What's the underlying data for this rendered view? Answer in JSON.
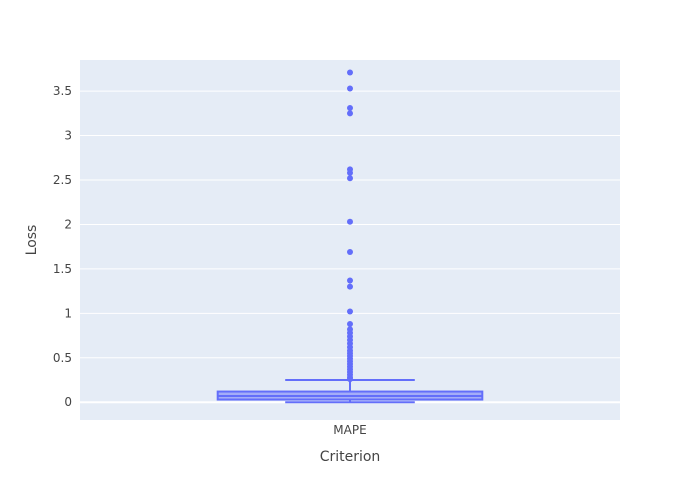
{
  "chart_data": {
    "type": "box",
    "xlabel": "Criterion",
    "ylabel": "Loss",
    "ylim": [
      -0.2,
      3.85
    ],
    "grid": true,
    "y_ticks": [
      0,
      0.5,
      1,
      1.5,
      2,
      2.5,
      3,
      3.5
    ],
    "y_tick_labels": [
      "0",
      "0.5",
      "1",
      "1.5",
      "2",
      "2.5",
      "3",
      "3.5"
    ],
    "categories": [
      "MAPE"
    ],
    "colors": {
      "series": "#636efa",
      "plot_background": "#e5ecf6",
      "grid": "#ffffff",
      "text": "#444444"
    },
    "series": [
      {
        "category": "MAPE",
        "min": 0.0,
        "q1": 0.03,
        "median": 0.07,
        "q3": 0.12,
        "upper_fence": 0.25,
        "outliers": [
          3.71,
          3.53,
          3.31,
          3.25,
          2.62,
          2.58,
          2.52,
          2.03,
          1.69,
          1.37,
          1.3,
          1.02,
          0.88,
          0.82,
          0.78,
          0.74,
          0.7,
          0.66,
          0.62,
          0.58,
          0.55,
          0.52,
          0.49,
          0.46,
          0.43,
          0.4,
          0.37,
          0.34,
          0.31,
          0.28,
          0.26
        ]
      }
    ]
  }
}
